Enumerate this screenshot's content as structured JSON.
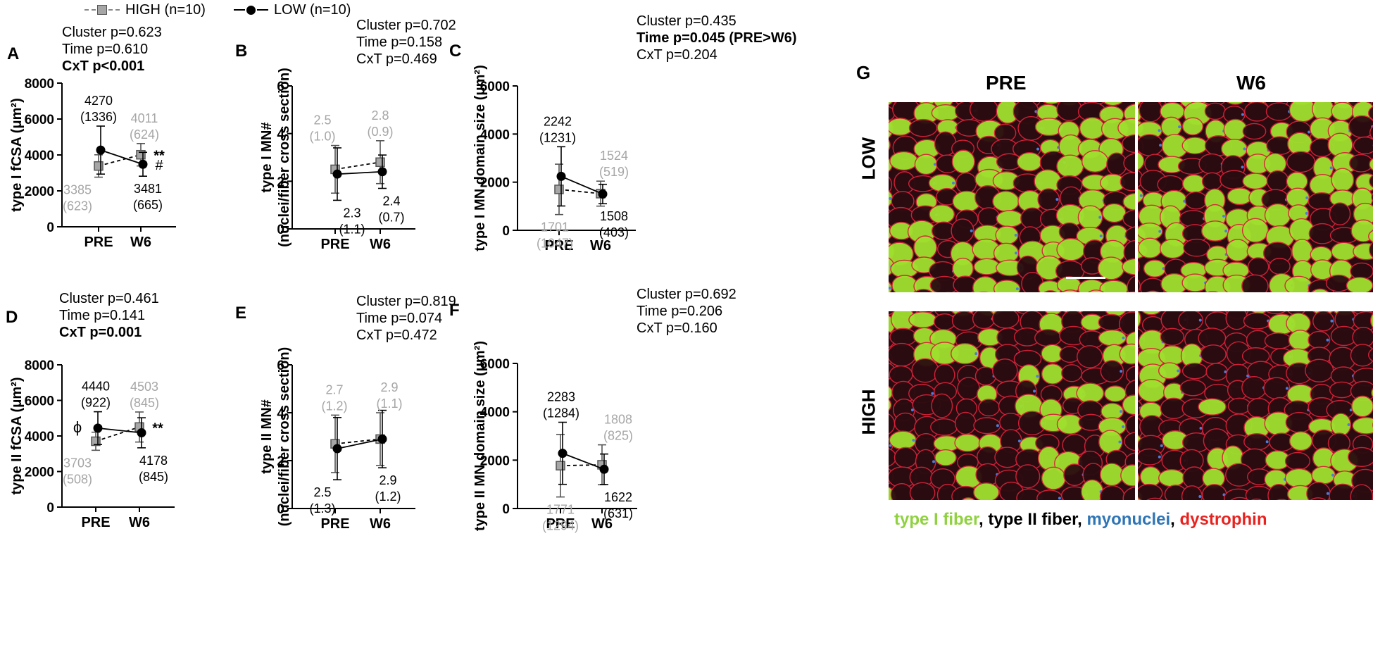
{
  "legend": {
    "high_label": "HIGH (n=10)",
    "low_label": "LOW (n=10)",
    "high_style": {
      "marker": "square",
      "fill": "#a6a6a6",
      "line": "dashed"
    },
    "low_style": {
      "marker": "circle",
      "fill": "#000000",
      "line": "solid"
    }
  },
  "colors": {
    "high_text": "#a6a6a6",
    "low_text": "#000000"
  },
  "chart_data": [
    {
      "type": "line",
      "panel": "A",
      "title": "",
      "xlabel": "",
      "ylabel": "type I fCSA (μm²)",
      "categories": [
        "PRE",
        "W6"
      ],
      "ylim": [
        0,
        8000
      ],
      "yticks": [
        "0",
        "2000",
        "4000",
        "6000",
        "8000"
      ],
      "stats": [
        {
          "text": "Cluster p=0.623",
          "bold": false
        },
        {
          "text": "Time p=0.610",
          "bold": false
        },
        {
          "text": "CxT p<0.001",
          "bold": true
        }
      ],
      "series": [
        {
          "name": "HIGH (n=10)",
          "values": [
            3385,
            4011
          ],
          "sd": [
            623,
            624
          ],
          "labels": [
            [
              "3385",
              "(623)"
            ],
            [
              "4011",
              "(624)"
            ]
          ]
        },
        {
          "name": "LOW (n=10)",
          "values": [
            4270,
            3481
          ],
          "sd": [
            1336,
            665
          ],
          "labels": [
            [
              "4270",
              "(1336)"
            ],
            [
              "3481",
              "(665)"
            ]
          ]
        }
      ],
      "annotations": [
        {
          "text": "**",
          "series": 0,
          "point": 1
        },
        {
          "text": "#",
          "series": 1,
          "point": 1
        }
      ]
    },
    {
      "type": "line",
      "panel": "B",
      "title": "",
      "xlabel": "",
      "ylabel": "type I MN#",
      "ylabel2": "(nuclei/fiber cross section)",
      "categories": [
        "PRE",
        "W6"
      ],
      "ylim": [
        0,
        6
      ],
      "yticks": [
        "0",
        "2",
        "4",
        "6"
      ],
      "stats": [
        {
          "text": "Cluster p=0.702",
          "bold": false
        },
        {
          "text": "Time p=0.158",
          "bold": false
        },
        {
          "text": "CxT p=0.469",
          "bold": false
        }
      ],
      "series": [
        {
          "name": "HIGH (n=10)",
          "values": [
            2.5,
            2.8
          ],
          "sd": [
            1.0,
            0.9
          ],
          "labels": [
            [
              "2.5",
              "(1.0)"
            ],
            [
              "2.8",
              "(0.9)"
            ]
          ]
        },
        {
          "name": "LOW (n=10)",
          "values": [
            2.3,
            2.4
          ],
          "sd": [
            1.1,
            0.7
          ],
          "labels": [
            [
              "2.3",
              "(1.1)"
            ],
            [
              "2.4",
              "(0.7)"
            ]
          ]
        }
      ],
      "annotations": []
    },
    {
      "type": "line",
      "panel": "C",
      "title": "",
      "xlabel": "",
      "ylabel": "type I MN domain size (μm²)",
      "categories": [
        "PRE",
        "W6"
      ],
      "ylim": [
        0,
        6000
      ],
      "yticks": [
        "0",
        "2000",
        "4000",
        "6000"
      ],
      "stats": [
        {
          "text": "Cluster p=0.435",
          "bold": false
        },
        {
          "text": "Time p=0.045 (PRE>W6)",
          "bold": true
        },
        {
          "text": "CxT p=0.204",
          "bold": false
        }
      ],
      "series": [
        {
          "name": "HIGH (n=10)",
          "values": [
            1701,
            1524
          ],
          "sd": [
            1047,
            519
          ],
          "labels": [
            [
              "1701",
              "(1047)"
            ],
            [
              "1524",
              "(519)"
            ]
          ]
        },
        {
          "name": "LOW (n=10)",
          "values": [
            2242,
            1508
          ],
          "sd": [
            1231,
            403
          ],
          "labels": [
            [
              "2242",
              "(1231)"
            ],
            [
              "1508",
              "(403)"
            ]
          ]
        }
      ],
      "annotations": []
    },
    {
      "type": "line",
      "panel": "D",
      "title": "",
      "xlabel": "",
      "ylabel": "type II fCSA (μm²)",
      "categories": [
        "PRE",
        "W6"
      ],
      "ylim": [
        0,
        8000
      ],
      "yticks": [
        "0",
        "2000",
        "4000",
        "6000",
        "8000"
      ],
      "stats": [
        {
          "text": "Cluster p=0.461",
          "bold": false
        },
        {
          "text": "Time p=0.141",
          "bold": false
        },
        {
          "text": "CxT p=0.001",
          "bold": true
        }
      ],
      "series": [
        {
          "name": "HIGH (n=10)",
          "values": [
            3703,
            4503
          ],
          "sd": [
            508,
            845
          ],
          "labels": [
            [
              "3703",
              "(508)"
            ],
            [
              "4503",
              "(845)"
            ]
          ]
        },
        {
          "name": "LOW (n=10)",
          "values": [
            4440,
            4178
          ],
          "sd": [
            922,
            845
          ],
          "labels": [
            [
              "4440",
              "(922)"
            ],
            [
              "4178",
              "(845)"
            ]
          ]
        }
      ],
      "annotations": [
        {
          "text": "**",
          "series": 0,
          "point": 1
        },
        {
          "text": "ϕ",
          "series": 1,
          "point": 0
        }
      ]
    },
    {
      "type": "line",
      "panel": "E",
      "title": "",
      "xlabel": "",
      "ylabel": "type II MN#",
      "ylabel2": "(nuclei/fiber cross section)",
      "categories": [
        "PRE",
        "W6"
      ],
      "ylim": [
        0,
        6
      ],
      "yticks": [
        "0",
        "2",
        "4",
        "6"
      ],
      "stats": [
        {
          "text": "Cluster p=0.819",
          "bold": false
        },
        {
          "text": "Time p=0.074",
          "bold": false
        },
        {
          "text": "CxT p=0.472",
          "bold": false
        }
      ],
      "series": [
        {
          "name": "HIGH (n=10)",
          "values": [
            2.7,
            2.9
          ],
          "sd": [
            1.2,
            1.1
          ],
          "labels": [
            [
              "2.7",
              "(1.2)"
            ],
            [
              "2.9",
              "(1.1)"
            ]
          ]
        },
        {
          "name": "LOW (n=10)",
          "values": [
            2.5,
            2.9
          ],
          "sd": [
            1.3,
            1.2
          ],
          "labels": [
            [
              "2.5",
              "(1.3)"
            ],
            [
              "2.9",
              "(1.2)"
            ]
          ]
        }
      ],
      "annotations": []
    },
    {
      "type": "line",
      "panel": "F",
      "title": "",
      "xlabel": "",
      "ylabel": "type II MN domain size (μm²)",
      "categories": [
        "PRE",
        "W6"
      ],
      "ylim": [
        0,
        6000
      ],
      "yticks": [
        "0",
        "2000",
        "4000",
        "6000"
      ],
      "stats": [
        {
          "text": "Cluster p=0.692",
          "bold": false
        },
        {
          "text": "Time p=0.206",
          "bold": false
        },
        {
          "text": "CxT p=0.160",
          "bold": false
        }
      ],
      "series": [
        {
          "name": "HIGH (n=10)",
          "values": [
            1771,
            1808
          ],
          "sd": [
            1294,
            825
          ],
          "labels": [
            [
              "1771",
              "(1294)"
            ],
            [
              "1808",
              "(825)"
            ]
          ]
        },
        {
          "name": "LOW (n=10)",
          "values": [
            2283,
            1622
          ],
          "sd": [
            1284,
            631
          ],
          "labels": [
            [
              "2283",
              "(1284)"
            ],
            [
              "1622",
              "(631)"
            ]
          ]
        }
      ],
      "annotations": []
    }
  ],
  "micrograph": {
    "panel_letter": "G",
    "columns": [
      "PRE",
      "W6"
    ],
    "rows": [
      "LOW",
      "HIGH"
    ],
    "caption": [
      {
        "text": "type I fiber",
        "color": "#8fd13f"
      },
      {
        "text": ", ",
        "color": "#000000"
      },
      {
        "text": "type II fiber",
        "color": "#000000"
      },
      {
        "text": ", ",
        "color": "#000000"
      },
      {
        "text": "myonuclei",
        "color": "#2e75b6"
      },
      {
        "text": ", ",
        "color": "#000000"
      },
      {
        "text": "dystrophin",
        "color": "#e8231f"
      }
    ],
    "tissue_colors": {
      "type_I": "#9fe02e",
      "type_II": "#2a0c10",
      "membrane": "#d8213a",
      "nuclei": "#4a7de0"
    }
  }
}
